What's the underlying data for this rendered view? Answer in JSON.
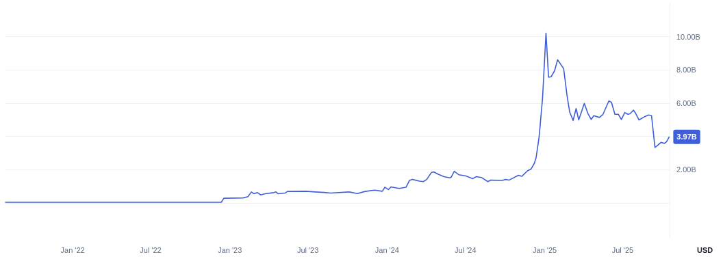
{
  "chart_data": {
    "type": "line",
    "ylabel": "USD",
    "x": [
      "2021-07-29",
      "2022-12-12",
      "2022-12-18",
      "2023-02-01",
      "2023-02-12",
      "2023-02-20",
      "2023-02-26",
      "2023-03-06",
      "2023-03-14",
      "2023-03-24",
      "2023-04-13",
      "2023-04-18",
      "2023-04-23",
      "2023-05-09",
      "2023-05-15",
      "2023-06-27",
      "2023-07-18",
      "2023-08-08",
      "2023-08-23",
      "2023-10-05",
      "2023-10-24",
      "2023-11-11",
      "2023-12-03",
      "2023-12-21",
      "2023-12-27",
      "2024-01-04",
      "2024-01-10",
      "2024-01-29",
      "2024-02-14",
      "2024-02-22",
      "2024-02-29",
      "2024-03-16",
      "2024-03-25",
      "2024-04-02",
      "2024-04-13",
      "2024-04-18",
      "2024-04-29",
      "2024-05-12",
      "2024-05-26",
      "2024-05-29",
      "2024-06-05",
      "2024-06-16",
      "2024-07-02",
      "2024-07-18",
      "2024-07-26",
      "2024-08-07",
      "2024-08-22",
      "2024-08-29",
      "2024-09-24",
      "2024-10-02",
      "2024-10-10",
      "2024-11-01",
      "2024-11-09",
      "2024-11-22",
      "2024-11-30",
      "2024-12-08",
      "2024-12-12",
      "2024-12-19",
      "2024-12-27",
      "2025-01-04",
      "2025-01-10",
      "2025-01-16",
      "2025-01-24",
      "2025-01-31",
      "2025-02-14",
      "2025-02-22",
      "2025-02-28",
      "2025-03-08",
      "2025-03-15",
      "2025-03-21",
      "2025-04-03",
      "2025-04-11",
      "2025-04-19",
      "2025-04-25",
      "2025-05-08",
      "2025-05-16",
      "2025-05-30",
      "2025-06-05",
      "2025-06-13",
      "2025-06-21",
      "2025-06-28",
      "2025-07-06",
      "2025-07-13",
      "2025-07-18",
      "2025-07-26",
      "2025-07-31",
      "2025-08-08",
      "2025-08-22",
      "2025-08-30",
      "2025-09-06",
      "2025-09-14",
      "2025-09-18",
      "2025-09-28",
      "2025-10-06",
      "2025-10-11",
      "2025-10-17"
    ],
    "series": [
      {
        "color": "#3f5fd9",
        "values": [
          0.04,
          0.04,
          0.28,
          0.3,
          0.38,
          0.66,
          0.55,
          0.62,
          0.48,
          0.55,
          0.62,
          0.66,
          0.55,
          0.59,
          0.69,
          0.7,
          0.66,
          0.63,
          0.59,
          0.66,
          0.56,
          0.69,
          0.77,
          0.7,
          0.94,
          0.8,
          0.96,
          0.87,
          0.94,
          1.35,
          1.41,
          1.31,
          1.28,
          1.41,
          1.83,
          1.87,
          1.72,
          1.58,
          1.51,
          1.55,
          1.9,
          1.69,
          1.62,
          1.46,
          1.58,
          1.53,
          1.28,
          1.37,
          1.35,
          1.41,
          1.37,
          1.66,
          1.6,
          1.93,
          2.03,
          2.38,
          2.72,
          3.96,
          6.3,
          10.21,
          7.56,
          7.59,
          7.95,
          8.61,
          8.08,
          6.43,
          5.47,
          4.96,
          5.68,
          4.99,
          5.99,
          5.4,
          5.02,
          5.25,
          5.14,
          5.31,
          6.13,
          6.05,
          5.33,
          5.33,
          5.02,
          5.44,
          5.33,
          5.36,
          5.58,
          5.4,
          4.99,
          5.2,
          5.29,
          5.25,
          3.34,
          3.41,
          3.64,
          3.58,
          3.68,
          3.97
        ]
      }
    ],
    "xlim": [
      "2021-07-29",
      "2025-10-18"
    ],
    "xticks": [
      {
        "value": "2022-01-01",
        "label": "Jan '22"
      },
      {
        "value": "2022-07-01",
        "label": "Jul '22"
      },
      {
        "value": "2023-01-01",
        "label": "Jan '23"
      },
      {
        "value": "2023-07-01",
        "label": "Jul '23"
      },
      {
        "value": "2024-01-01",
        "label": "Jan '24"
      },
      {
        "value": "2024-07-01",
        "label": "Jul '24"
      },
      {
        "value": "2025-01-01",
        "label": "Jan '25"
      },
      {
        "value": "2025-07-01",
        "label": "Jul '25"
      }
    ],
    "ylim": [
      -2.1,
      12
    ],
    "yticks": [
      {
        "value": 0,
        "label": null
      },
      {
        "value": 2,
        "label": "2.00B"
      },
      {
        "value": 4,
        "label": null
      },
      {
        "value": 6,
        "label": "6.00B"
      },
      {
        "value": 8,
        "label": "8.00B"
      },
      {
        "value": 10,
        "label": "10.00B"
      }
    ],
    "annotations": [
      {
        "text": "3.97B",
        "x": "2025-10-17",
        "y": 3.97
      }
    ],
    "grid": "y",
    "marker": "none",
    "line_style": "solid"
  }
}
